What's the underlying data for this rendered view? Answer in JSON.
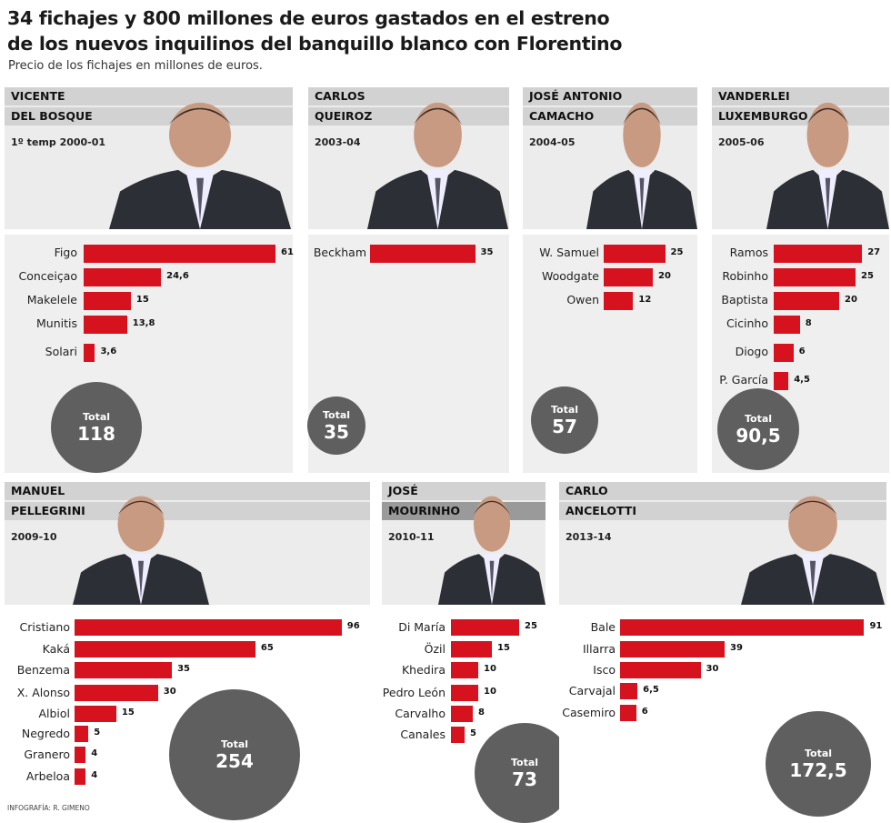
{
  "title_line1": "34 fichajes y 800 millones de euros gastados en el estreno",
  "title_line2": "de los nuevos inquilinos del banquillo blanco con Florentino",
  "subtitle": "Precio de los fichajes en millones de euros.",
  "credit": "INFOGRAFÍA: R. GIMENO",
  "colors": {
    "bar": "#d7121f",
    "total_circle": "#5f5f5f",
    "header_band": "#d2d2d2",
    "panel_bg": "#ececec"
  },
  "chart_data": [
    {
      "type": "bar",
      "orientation": "horizontal",
      "name_line1": "VICENTE",
      "name_line2": "DEL BOSQUE",
      "season": "1º temp 2000-01",
      "categories": [
        "Figo",
        "Conceiçao",
        "Makelele",
        "Munitis",
        "Solari"
      ],
      "values": [
        61,
        24.6,
        15,
        13.8,
        3.6
      ],
      "labels": [
        "61",
        "24,6",
        "15",
        "13,8",
        "3,6"
      ],
      "total_label": "Total",
      "total": "118"
    },
    {
      "type": "bar",
      "orientation": "horizontal",
      "name_line1": "CARLOS",
      "name_line2": "QUEIROZ",
      "season": "2003-04",
      "categories": [
        "Beckham"
      ],
      "values": [
        35
      ],
      "labels": [
        "35"
      ],
      "total_label": "Total",
      "total": "35"
    },
    {
      "type": "bar",
      "orientation": "horizontal",
      "name_line1": "JOSÉ ANTONIO",
      "name_line2": "CAMACHO",
      "season": "2004-05",
      "categories": [
        "W. Samuel",
        "Woodgate",
        "Owen"
      ],
      "values": [
        25,
        20,
        12
      ],
      "labels": [
        "25",
        "20",
        "12"
      ],
      "total_label": "Total",
      "total": "57"
    },
    {
      "type": "bar",
      "orientation": "horizontal",
      "name_line1": "VANDERLEI",
      "name_line2": "LUXEMBURGO",
      "season": "2005-06",
      "categories": [
        "Ramos",
        "Robinho",
        "Baptista",
        "Cicinho",
        "Diogo",
        "P. García"
      ],
      "values": [
        27,
        25,
        20,
        8,
        6,
        4.5
      ],
      "labels": [
        "27",
        "25",
        "20",
        "8",
        "6",
        "4,5"
      ],
      "total_label": "Total",
      "total": "90,5"
    },
    {
      "type": "bar",
      "orientation": "horizontal",
      "name_line1": "MANUEL",
      "name_line2": "PELLEGRINI",
      "season": "2009-10",
      "categories": [
        "Cristiano",
        "Kaká",
        "Benzema",
        "X. Alonso",
        "Albiol",
        "Negredo",
        "Granero",
        "Arbeloa"
      ],
      "values": [
        96,
        65,
        35,
        30,
        15,
        5,
        4,
        4
      ],
      "labels": [
        "96",
        "65",
        "35",
        "30",
        "15",
        "5",
        "4",
        "4"
      ],
      "total_label": "Total",
      "total": "254"
    },
    {
      "type": "bar",
      "orientation": "horizontal",
      "name_line1": "JOSÉ",
      "name_line2": "MOURINHO",
      "season": "2010-11",
      "categories": [
        "Di María",
        "Özil",
        "Khedira",
        "Pedro León",
        "Carvalho",
        "Canales"
      ],
      "values": [
        25,
        15,
        10,
        10,
        8,
        5
      ],
      "labels": [
        "25",
        "15",
        "10",
        "10",
        "8",
        "5"
      ],
      "total_label": "Total",
      "total": "73"
    },
    {
      "type": "bar",
      "orientation": "horizontal",
      "name_line1": "CARLO",
      "name_line2": "ANCELOTTI",
      "season": "2013-14",
      "categories": [
        "Bale",
        "Illarra",
        "Isco",
        "Carvajal",
        "Casemiro"
      ],
      "values": [
        91,
        39,
        30,
        6.5,
        6
      ],
      "labels": [
        "91",
        "39",
        "30",
        "6,5",
        "6"
      ],
      "total_label": "Total",
      "total": "172,5"
    }
  ]
}
